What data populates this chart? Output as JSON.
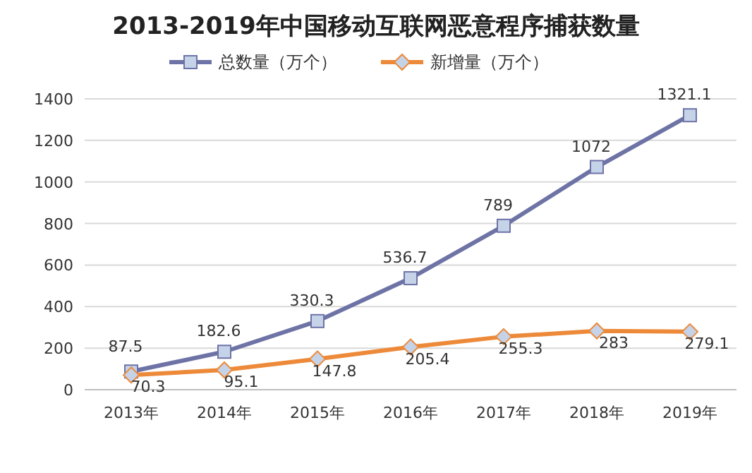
{
  "chart_data": {
    "type": "line",
    "title": "2013-2019年中国移动互联网恶意程序捕获数量",
    "categories": [
      "2013年",
      "2014年",
      "2015年",
      "2016年",
      "2017年",
      "2018年",
      "2019年"
    ],
    "series": [
      {
        "name": "总数量（万个）",
        "color": "#6e73a6",
        "marker": "square",
        "values": [
          87.5,
          182.6,
          330.3,
          536.7,
          789,
          1072,
          1321.1
        ]
      },
      {
        "name": "新增量（万个）",
        "color": "#ed8a3a",
        "marker": "diamond",
        "values": [
          70.3,
          95.1,
          147.8,
          205.4,
          255.3,
          283,
          279.1
        ]
      }
    ],
    "ylim": [
      0,
      1400
    ],
    "yticks": [
      0,
      200,
      400,
      600,
      800,
      1000,
      1200,
      1400
    ],
    "grid": "y",
    "legend": "top",
    "data_labels": true,
    "line_style": "solid"
  }
}
